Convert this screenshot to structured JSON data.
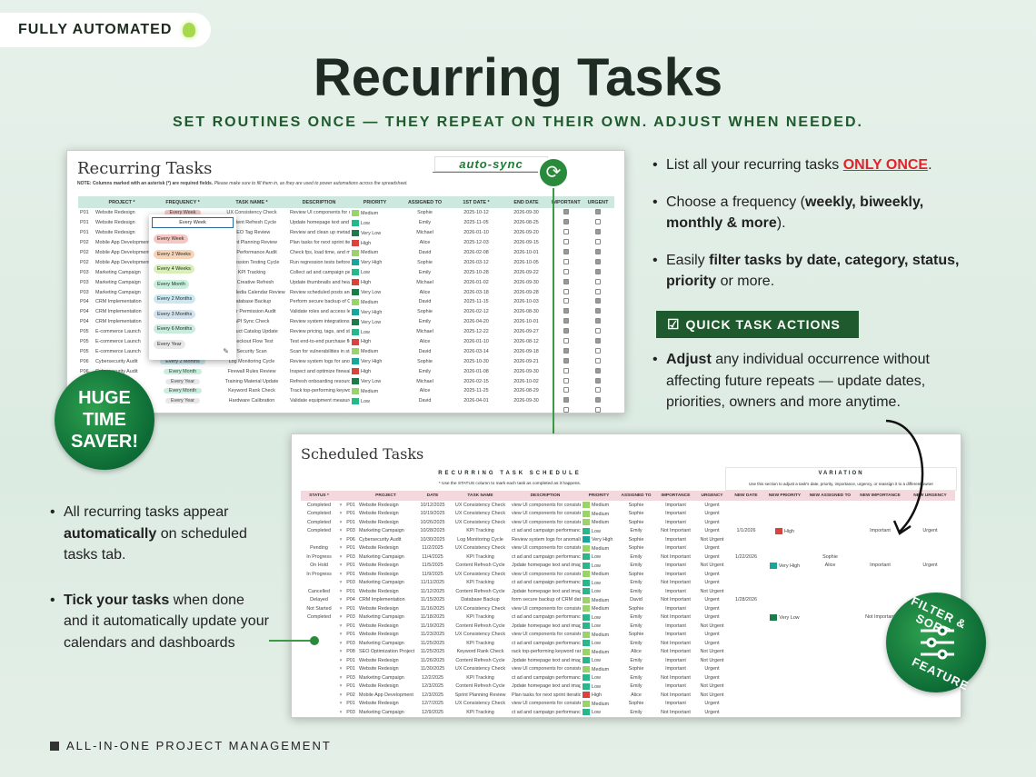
{
  "header": {
    "badge": "FULLY AUTOMATED",
    "badge_icon": "lightbulb-icon",
    "title": "Recurring Tasks",
    "subtitle": "SET ROUTINES ONCE — THEY REPEAT ON THEIR OWN. ADJUST WHEN NEEDED."
  },
  "colors": {
    "accent": "#1f5a2e",
    "highlight": "#e0242c",
    "priority": {
      "Very High": "#1aa59a",
      "High": "#d9433b",
      "Medium": "#9bd36b",
      "Low": "#2bb58a",
      "Very Low": "#1e7a4a"
    }
  },
  "sync": {
    "label": "auto-sync",
    "icon": "sync-icon"
  },
  "recurring_sheet": {
    "title": "Recurring Tasks",
    "note_bold": "NOTE: Columns marked with an asterisk (*) are required fields.",
    "note": "Please make sure to fill them in, as they are used to power automations across the spreadsheet.",
    "columns": [
      "",
      "PROJECT *",
      "FREQUENCY *",
      "TASK NAME *",
      "DESCRIPTION",
      "PRIORITY",
      "ASSIGNED TO",
      "1ST DATE *",
      "END DATE",
      "IMPORTANT",
      "URGENT"
    ],
    "rows": [
      [
        "P01",
        "Website Redesign",
        "Every Week",
        "UX Consistency Check",
        "Review UI components for consis",
        "Medium",
        "Sophie",
        "2025-10-12",
        "2026-09-30",
        true,
        true
      ],
      [
        "P01",
        "Website Redesign",
        "",
        "Content Refresh Cycle",
        "Update homepage text and image",
        "Low",
        "Emily",
        "2025-11-05",
        "2026-08-25",
        true,
        false
      ],
      [
        "P01",
        "Website Redesign",
        "",
        "SEO Tag Review",
        "Review and clean up metadata",
        "Very Low",
        "Michael",
        "2026-01-10",
        "2026-09-20",
        false,
        true
      ],
      [
        "P02",
        "Mobile App Development",
        "",
        "Sprint Planning Review",
        "Plan tasks for next sprint iteration",
        "High",
        "Alice",
        "2025-12-03",
        "2026-09-15",
        false,
        false
      ],
      [
        "P02",
        "Mobile App Development",
        "",
        "App Performance Audit",
        "Check fps, load time, and memory",
        "Medium",
        "David",
        "2026-02-08",
        "2026-10-01",
        true,
        true
      ],
      [
        "P02",
        "Mobile App Development",
        "",
        "Regression Testing Cycle",
        "Run regression tests before minor",
        "Very High",
        "Sophie",
        "2026-03-12",
        "2026-10-05",
        false,
        true
      ],
      [
        "P03",
        "Marketing Campaign",
        "",
        "KPI Tracking",
        "Collect ad and campaign performance",
        "Low",
        "Emily",
        "2025-10-28",
        "2026-09-22",
        false,
        true
      ],
      [
        "P03",
        "Marketing Campaign",
        "",
        "Ad Creative Refresh",
        "Update thumbnails and headlines",
        "High",
        "Michael",
        "2026-01-02",
        "2026-09-30",
        true,
        false
      ],
      [
        "P03",
        "Marketing Campaign",
        "",
        "Social Media Calendar Review",
        "Review scheduled posts and updates",
        "Very Low",
        "Alice",
        "2026-03-18",
        "2026-09-28",
        false,
        false
      ],
      [
        "P04",
        "CRM Implementation",
        "",
        "Database Backup",
        "Perform secure backup of CRM data",
        "Medium",
        "David",
        "2025-11-15",
        "2026-10-03",
        false,
        true
      ],
      [
        "P04",
        "CRM Implementation",
        "",
        "User Permission Audit",
        "Validate roles and access levels",
        "Very High",
        "Sophie",
        "2026-02-12",
        "2026-08-30",
        true,
        true
      ],
      [
        "P04",
        "CRM Implementation",
        "",
        "API Sync Check",
        "Review system integrations and logs",
        "Very Low",
        "Emily",
        "2026-04-20",
        "2026-10-01",
        true,
        true
      ],
      [
        "P05",
        "E-commerce Launch",
        "",
        "Product Catalog Update",
        "Review pricing, tags, and stock levels",
        "Low",
        "Michael",
        "2025-12-22",
        "2026-09-27",
        true,
        false
      ],
      [
        "P05",
        "E-commerce Launch",
        "",
        "Checkout Flow Test",
        "Test end-to-end purchase flow",
        "High",
        "Alice",
        "2026-01-10",
        "2026-08-12",
        false,
        true
      ],
      [
        "P05",
        "E-commerce Launch",
        "",
        "Security Scan",
        "Scan for vulnerabilities in storefront",
        "Medium",
        "David",
        "2026-03-14",
        "2026-09-18",
        true,
        false
      ],
      [
        "P06",
        "Cybersecurity Audit",
        "Every 2 Months",
        "Log Monitoring Cycle",
        "Review system logs for anomalies",
        "Very High",
        "Sophie",
        "2025-10-30",
        "2026-09-21",
        true,
        false
      ],
      [
        "P06",
        "Cybersecurity Audit",
        "Every Month",
        "Firewall Rules Review",
        "Inspect and optimize firewall policies",
        "High",
        "Emily",
        "2026-01-08",
        "2026-09-30",
        false,
        true
      ],
      [
        "",
        "",
        "Every Year",
        "Training Material Update",
        "Refresh onboarding resources and docs",
        "Very Low",
        "Michael",
        "2026-02-15",
        "2026-10-02",
        false,
        true
      ],
      [
        "",
        "",
        "Every Month",
        "Keyword Rank Check",
        "Track top-performing keyword rankings",
        "Medium",
        "Alice",
        "2025-11-25",
        "2026-08-29",
        false,
        false
      ],
      [
        "",
        "",
        "Every Year",
        "Hardware Calibration",
        "Validate equipment measurements",
        "Low",
        "David",
        "2026-04-01",
        "2026-09-30",
        true,
        true
      ],
      [
        "",
        "",
        "",
        "",
        "",
        "",
        "",
        "",
        "",
        false,
        false
      ]
    ],
    "dropdown": {
      "input_value": "Every Week",
      "options": [
        {
          "label": "Every Week",
          "color": "#f6c6c3"
        },
        {
          "label": "Every 2 Weeks",
          "color": "#f8d3b8"
        },
        {
          "label": "Every 4 Weeks",
          "color": "#d9efb8"
        },
        {
          "label": "Every Month",
          "color": "#c8eedd"
        },
        {
          "label": "Every 2 Months",
          "color": "#cde7f0"
        },
        {
          "label": "Every 3 Months",
          "color": "#d3e2ee"
        },
        {
          "label": "Every 6 Months",
          "color": "#c9ecdf"
        },
        {
          "label": "Every Year",
          "color": "#e8e8e8"
        }
      ],
      "edit_icon": "pencil-icon"
    }
  },
  "right_panel": {
    "b1_pre": "List all your recurring tasks ",
    "b1_em": "ONLY ONCE",
    "b1_post": ".",
    "b2_pre": "Choose a frequency (",
    "b2_bold": "weekly, biweekly, monthly & more",
    "b2_post": ").",
    "b3_pre": "Easily ",
    "b3_bold": "filter tasks by date, category, status, priority",
    "b3_post": " or more.",
    "button": "QUICK TASK ACTIONS",
    "button_icon": "checklist-icon",
    "b4_bold": "Adjust",
    "b4_post": " any individual occurrence without affecting future repeats — update dates, priorities, owners and more anytime."
  },
  "huge_badge": [
    "HUGE",
    "TIME",
    "SAVER!"
  ],
  "scheduled_sheet": {
    "title": "Scheduled Tasks",
    "section1": "RECURRING TASK SCHEDULE",
    "section1_note": "* Use the STATUS column to mark each task as completed as it happens.",
    "section2": "VARIATION",
    "section2_note": "Use this section to adjust a task's date, priority, importance, urgency, or reassign it to a different owner",
    "columns": [
      "STATUS *",
      "",
      "",
      "PROJECT",
      "DATE",
      "TASK NAME",
      "DESCRIPTION",
      "PRIORITY",
      "ASSIGNED TO",
      "IMPORTANCE",
      "URGENCY",
      "NEW DATE",
      "NEW PRIORITY",
      "NEW ASSIGNED TO",
      "NEW IMPORTANCE",
      "NEW URGENCY"
    ],
    "rows": [
      [
        "Completed",
        "P01",
        "Website Redesign",
        "10/12/2025",
        "UX Consistency Check",
        "view UI components for consisten",
        "Medium",
        "Sophie",
        "Important",
        "Urgent",
        "",
        "",
        "",
        "",
        ""
      ],
      [
        "Completed",
        "P01",
        "Website Redesign",
        "10/19/2025",
        "UX Consistency Check",
        "view UI components for consisten",
        "Medium",
        "Sophie",
        "Important",
        "Urgent",
        "",
        "",
        "",
        "",
        ""
      ],
      [
        "Completed",
        "P01",
        "Website Redesign",
        "10/26/2025",
        "UX Consistency Check",
        "view UI components for consisten",
        "Medium",
        "Sophie",
        "Important",
        "Urgent",
        "",
        "",
        "",
        "",
        ""
      ],
      [
        "Completed",
        "P03",
        "Marketing Campaign",
        "10/28/2025",
        "KPI Tracking",
        "ct ad and campaign performance",
        "Low",
        "Emily",
        "Not Important",
        "Urgent",
        "1/1/2026",
        "High",
        "",
        "Important",
        "Urgent"
      ],
      [
        "",
        "P06",
        "Cybersecurity Audit",
        "10/30/2025",
        "Log Monitoring Cycle",
        "Review system logs for anomalies",
        "Very High",
        "Sophie",
        "Important",
        "Not Urgent",
        "",
        "",
        "",
        "",
        ""
      ],
      [
        "Pending",
        "P01",
        "Website Redesign",
        "11/2/2025",
        "UX Consistency Check",
        "view UI components for consisten",
        "Medium",
        "Sophie",
        "Important",
        "Urgent",
        "",
        "",
        "",
        "",
        ""
      ],
      [
        "In Progress",
        "P03",
        "Marketing Campaign",
        "11/4/2025",
        "KPI Tracking",
        "ct ad and campaign performance",
        "Low",
        "Emily",
        "Not Important",
        "Urgent",
        "1/22/2026",
        "",
        "Sophie",
        "",
        ""
      ],
      [
        "On Hold",
        "P01",
        "Website Redesign",
        "11/5/2025",
        "Content Refresh Cycle",
        "Jpdate homepage text and images",
        "Low",
        "Emily",
        "Important",
        "Not Urgent",
        "",
        "Very High",
        "Alice",
        "Important",
        "Urgent"
      ],
      [
        "In Progress",
        "P01",
        "Website Redesign",
        "11/9/2025",
        "UX Consistency Check",
        "view UI components for consisten",
        "Medium",
        "Sophie",
        "Important",
        "Urgent",
        "",
        "",
        "",
        "",
        ""
      ],
      [
        "",
        "P03",
        "Marketing Campaign",
        "11/11/2025",
        "KPI Tracking",
        "ct ad and campaign performance",
        "Low",
        "Emily",
        "Not Important",
        "Urgent",
        "",
        "",
        "",
        "",
        ""
      ],
      [
        "Cancelled",
        "P01",
        "Website Redesign",
        "11/12/2025",
        "Content Refresh Cycle",
        "Jpdate homepage text and images",
        "Low",
        "Emily",
        "Important",
        "Not Urgent",
        "",
        "",
        "",
        "",
        ""
      ],
      [
        "Delayed",
        "P04",
        "CRM Implementation",
        "11/15/2025",
        "Database Backup",
        "form secure backup of CRM datab",
        "Medium",
        "David",
        "Not Important",
        "Urgent",
        "1/28/2026",
        "",
        "",
        "",
        ""
      ],
      [
        "Not Started",
        "P01",
        "Website Redesign",
        "11/16/2025",
        "UX Consistency Check",
        "view UI components for consisten",
        "Medium",
        "Sophie",
        "Important",
        "Urgent",
        "",
        "",
        "",
        "",
        ""
      ],
      [
        "Completed",
        "P03",
        "Marketing Campaign",
        "11/18/2025",
        "KPI Tracking",
        "ct ad and campaign performance",
        "Low",
        "Emily",
        "Not Important",
        "Urgent",
        "",
        "Very Low",
        "",
        "Not Important",
        ""
      ],
      [
        "",
        "P01",
        "Website Redesign",
        "11/19/2025",
        "Content Refresh Cycle",
        "Jpdate homepage text and images",
        "Low",
        "Emily",
        "Important",
        "Not Urgent",
        "",
        "",
        "",
        "",
        ""
      ],
      [
        "",
        "P01",
        "Website Redesign",
        "11/23/2025",
        "UX Consistency Check",
        "view UI components for consisten",
        "Medium",
        "Sophie",
        "Important",
        "Urgent",
        "",
        "",
        "",
        "",
        ""
      ],
      [
        "",
        "P03",
        "Marketing Campaign",
        "11/25/2025",
        "KPI Tracking",
        "ct ad and campaign performance",
        "Low",
        "Emily",
        "Not Important",
        "Urgent",
        "",
        "",
        "",
        "",
        ""
      ],
      [
        "",
        "P08",
        "SEO Optimization Project",
        "11/25/2025",
        "Keyword Rank Check",
        "rack top-performing keyword rank",
        "Medium",
        "Alice",
        "Not Important",
        "Not Urgent",
        "",
        "",
        "",
        "",
        ""
      ],
      [
        "",
        "P01",
        "Website Redesign",
        "11/26/2025",
        "Content Refresh Cycle",
        "Jpdate homepage text and images",
        "Low",
        "Emily",
        "Important",
        "Not Urgent",
        "",
        "",
        "",
        "",
        ""
      ],
      [
        "",
        "P01",
        "Website Redesign",
        "11/30/2025",
        "UX Consistency Check",
        "view UI components for consisten",
        "Medium",
        "Sophie",
        "Important",
        "Urgent",
        "",
        "",
        "",
        "",
        ""
      ],
      [
        "",
        "P03",
        "Marketing Campaign",
        "12/2/2025",
        "KPI Tracking",
        "ct ad and campaign performance",
        "Low",
        "Emily",
        "Not Important",
        "Urgent",
        "",
        "",
        "",
        "",
        ""
      ],
      [
        "",
        "P01",
        "Website Redesign",
        "12/3/2025",
        "Content Refresh Cycle",
        "Jpdate homepage text and images",
        "Low",
        "Emily",
        "Important",
        "Not Urgent",
        "",
        "",
        "",
        "",
        ""
      ],
      [
        "",
        "P02",
        "Mobile App Development",
        "12/3/2025",
        "Sprint Planning Review",
        "Plan tasks for next sprint iteration",
        "High",
        "Alice",
        "Not Important",
        "Not Urgent",
        "",
        "",
        "",
        "",
        ""
      ],
      [
        "",
        "P01",
        "Website Redesign",
        "12/7/2025",
        "UX Consistency Check",
        "view UI components for consisten",
        "Medium",
        "Sophie",
        "Important",
        "Urgent",
        "",
        "",
        "",
        "",
        ""
      ],
      [
        "",
        "P03",
        "Marketing Campaign",
        "12/9/2025",
        "KPI Tracking",
        "ct ad and campaign performance",
        "Low",
        "Emily",
        "Not Important",
        "Urgent",
        "",
        "",
        "",
        "",
        ""
      ]
    ]
  },
  "left_panel": {
    "b1_pre": "All recurring tasks appear ",
    "b1_bold": "automatically",
    "b1_post": " on scheduled tasks tab.",
    "b2_bold": "Tick your tasks",
    "b2_post": " when done and it automatically update your calendars and dashboards"
  },
  "filter_badge": {
    "top": "FILTER & SORT",
    "bottom": "FEATURE",
    "icon": "sliders-icon"
  },
  "footer": "ALL-IN-ONE PROJECT MANAGEMENT"
}
